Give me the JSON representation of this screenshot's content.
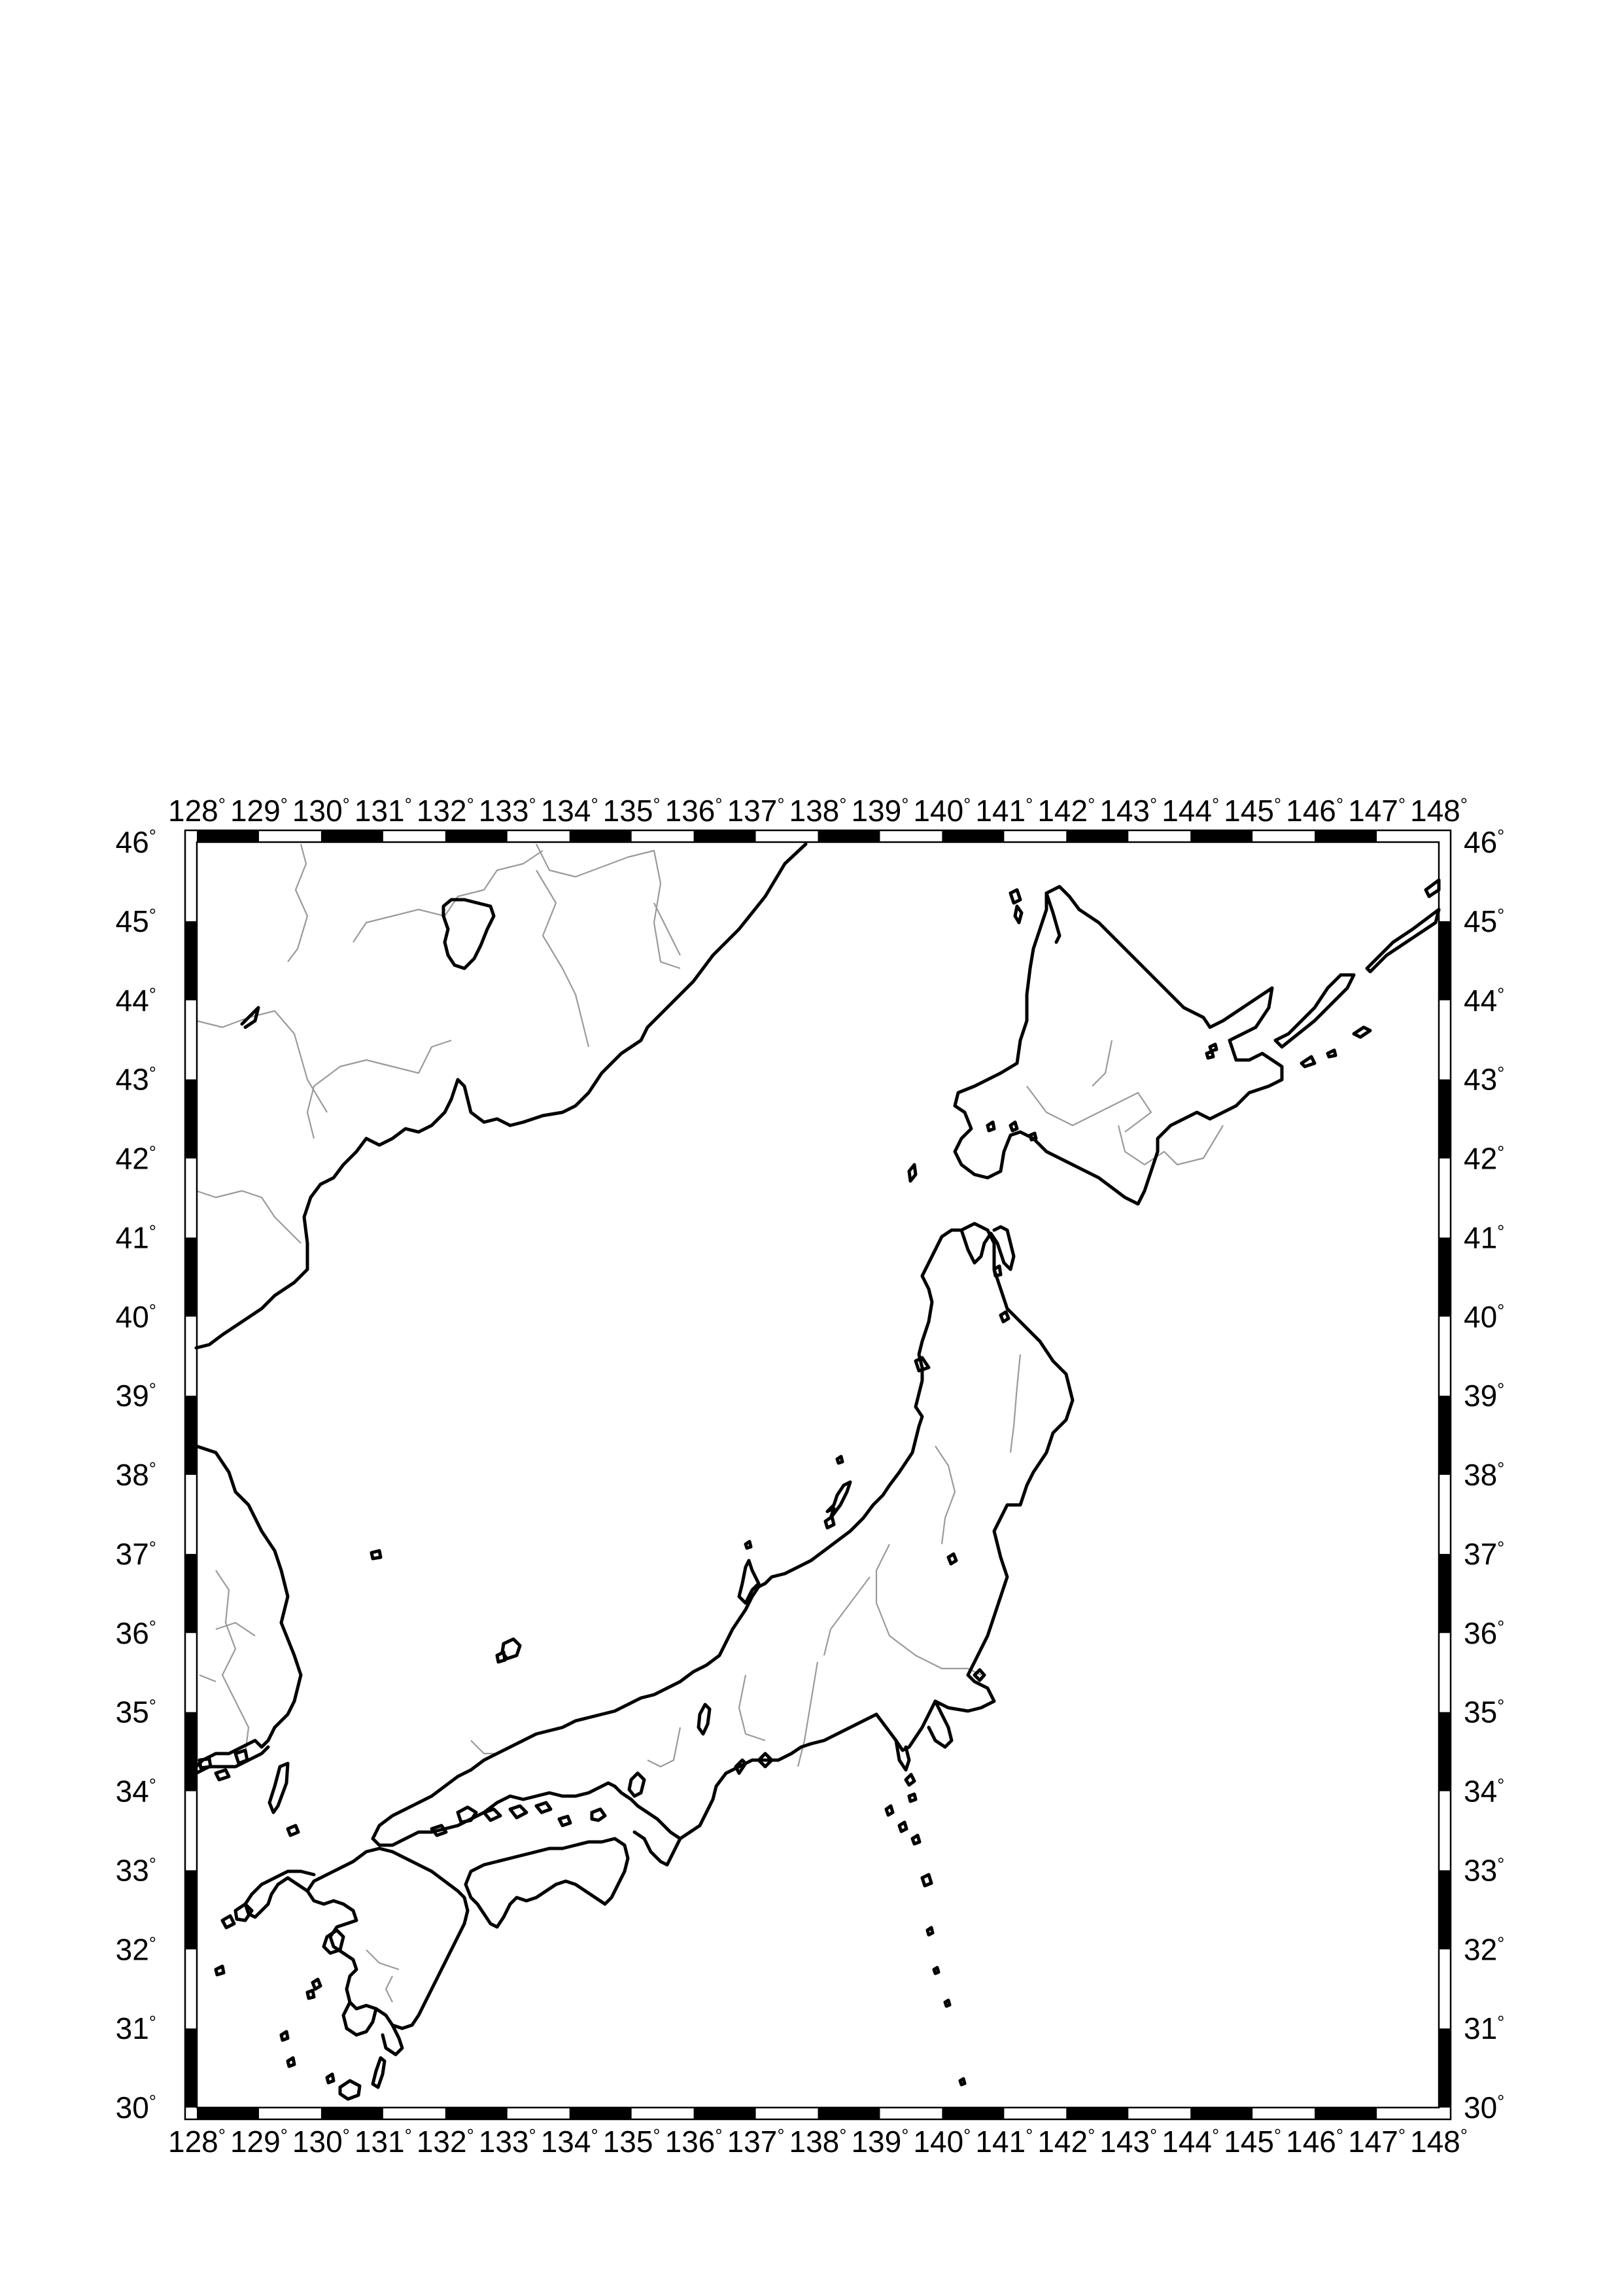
{
  "map": {
    "projection": "linear lon/lat",
    "region": {
      "lon_min": 128,
      "lon_max": 148,
      "lat_min": 30,
      "lat_max": 46
    },
    "frame_style": "checkerboard",
    "lon_labels": [
      "128",
      "129",
      "130",
      "131",
      "132",
      "133",
      "134",
      "135",
      "136",
      "137",
      "138",
      "139",
      "140",
      "141",
      "142",
      "143",
      "144",
      "145",
      "146",
      "147",
      "148"
    ],
    "lat_labels": [
      "30",
      "31",
      "32",
      "33",
      "34",
      "35",
      "36",
      "37",
      "38",
      "39",
      "40",
      "41",
      "42",
      "43",
      "44",
      "45",
      "46"
    ],
    "degree_symbol": "°",
    "colors": {
      "coast": "#000000",
      "rivers": "#9a9a9a",
      "frame": "#000000",
      "background": "#ffffff"
    },
    "features": [
      "coastlines",
      "rivers",
      "islands"
    ]
  }
}
